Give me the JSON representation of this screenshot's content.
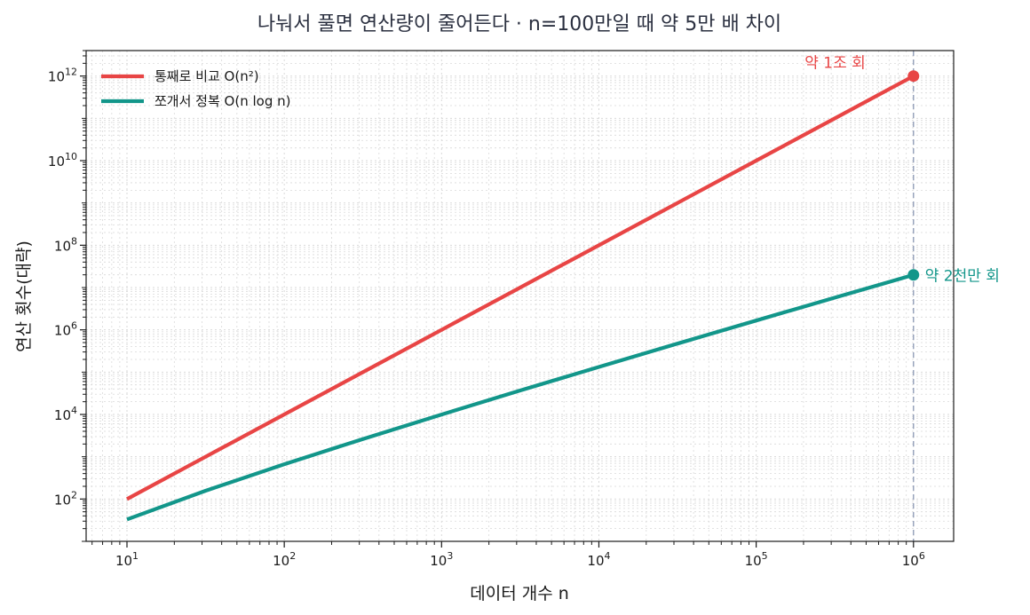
{
  "chart_data": {
    "type": "line",
    "title": "나눠서 풀면 연산량이 줄어든다  ·  n=100만일 때 약 5만 배 차이",
    "xlabel": "데이터 개수 n",
    "ylabel": "연산 횟수(대략)",
    "xscale": "log",
    "yscale": "log",
    "xlim": [
      5.5,
      1800000
    ],
    "ylim": [
      10,
      4000000000000
    ],
    "grid": true,
    "legend": "top-left",
    "x_ticks": [
      {
        "base": "10",
        "exp": "1",
        "value": 10
      },
      {
        "base": "10",
        "exp": "2",
        "value": 100
      },
      {
        "base": "10",
        "exp": "3",
        "value": 1000
      },
      {
        "base": "10",
        "exp": "4",
        "value": 10000
      },
      {
        "base": "10",
        "exp": "5",
        "value": 100000
      },
      {
        "base": "10",
        "exp": "6",
        "value": 1000000
      }
    ],
    "y_ticks": [
      {
        "base": "10",
        "exp": "2",
        "value": 100
      },
      {
        "base": "10",
        "exp": "4",
        "value": 10000
      },
      {
        "base": "10",
        "exp": "6",
        "value": 1000000
      },
      {
        "base": "10",
        "exp": "8",
        "value": 100000000
      },
      {
        "base": "10",
        "exp": "10",
        "value": 10000000000
      },
      {
        "base": "10",
        "exp": "12",
        "value": 1000000000000
      }
    ],
    "series": [
      {
        "name": "통째로 비교  O(n²)",
        "color": "#e84545",
        "x": [
          10,
          31.6,
          100,
          316,
          1000,
          3162,
          10000,
          31623,
          100000,
          316228,
          1000000
        ],
        "y": [
          100,
          1000,
          10000,
          100000,
          1000000,
          10000000,
          100000000,
          1000000000,
          10000000000,
          100000000000,
          1000000000000
        ]
      },
      {
        "name": "쪼개서 정복  O(n log n)",
        "color": "#12968a",
        "x": [
          10,
          31.6,
          100,
          316,
          1000,
          3162,
          10000,
          31623,
          100000,
          316228,
          1000000
        ],
        "y": [
          33,
          157,
          664,
          2626,
          9966,
          36780,
          132877,
          472880,
          1660964,
          5777970,
          19931569
        ]
      }
    ],
    "reference_line": {
      "axis": "x",
      "value": 1000000,
      "color": "#8a97b4"
    },
    "annotations": [
      {
        "text": "약 1조 회",
        "x": 1000000,
        "y": 1000000000000,
        "color": "#e84545",
        "position": "left-above"
      },
      {
        "text": "약 2천만 회",
        "x": 1000000,
        "y": 19931569,
        "color": "#12968a",
        "position": "right"
      }
    ]
  }
}
